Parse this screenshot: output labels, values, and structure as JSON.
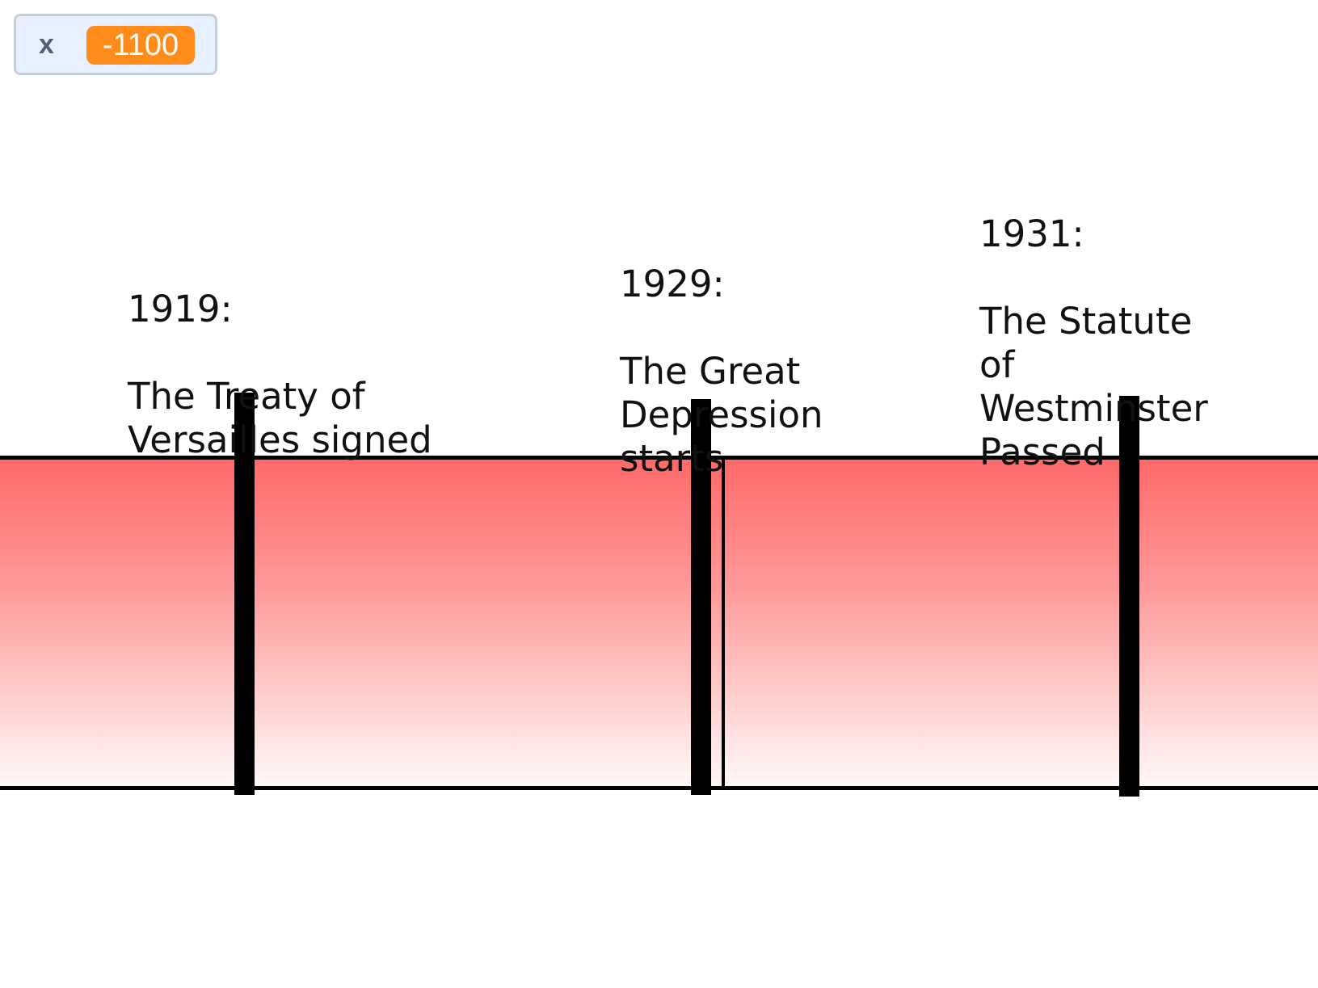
{
  "monitor": {
    "label": "x",
    "value": "-1100"
  },
  "timeline": {
    "band_colors": {
      "top": "#ff6a6a",
      "bottom": "#fff8f8",
      "outline": "#000000"
    },
    "events": [
      {
        "year": "1919:",
        "title": "The Treaty of\nVersailles signed"
      },
      {
        "year": "1929:",
        "title": "The Great\nDepression\nstarts"
      },
      {
        "year": "1931:",
        "title": "The Statute\nof\nWestminster\nPassed"
      }
    ]
  },
  "colors": {
    "monitor_bg": "#e6f0fe",
    "monitor_border": "#c4cfe0",
    "monitor_value_bg": "#ff8c1a"
  }
}
